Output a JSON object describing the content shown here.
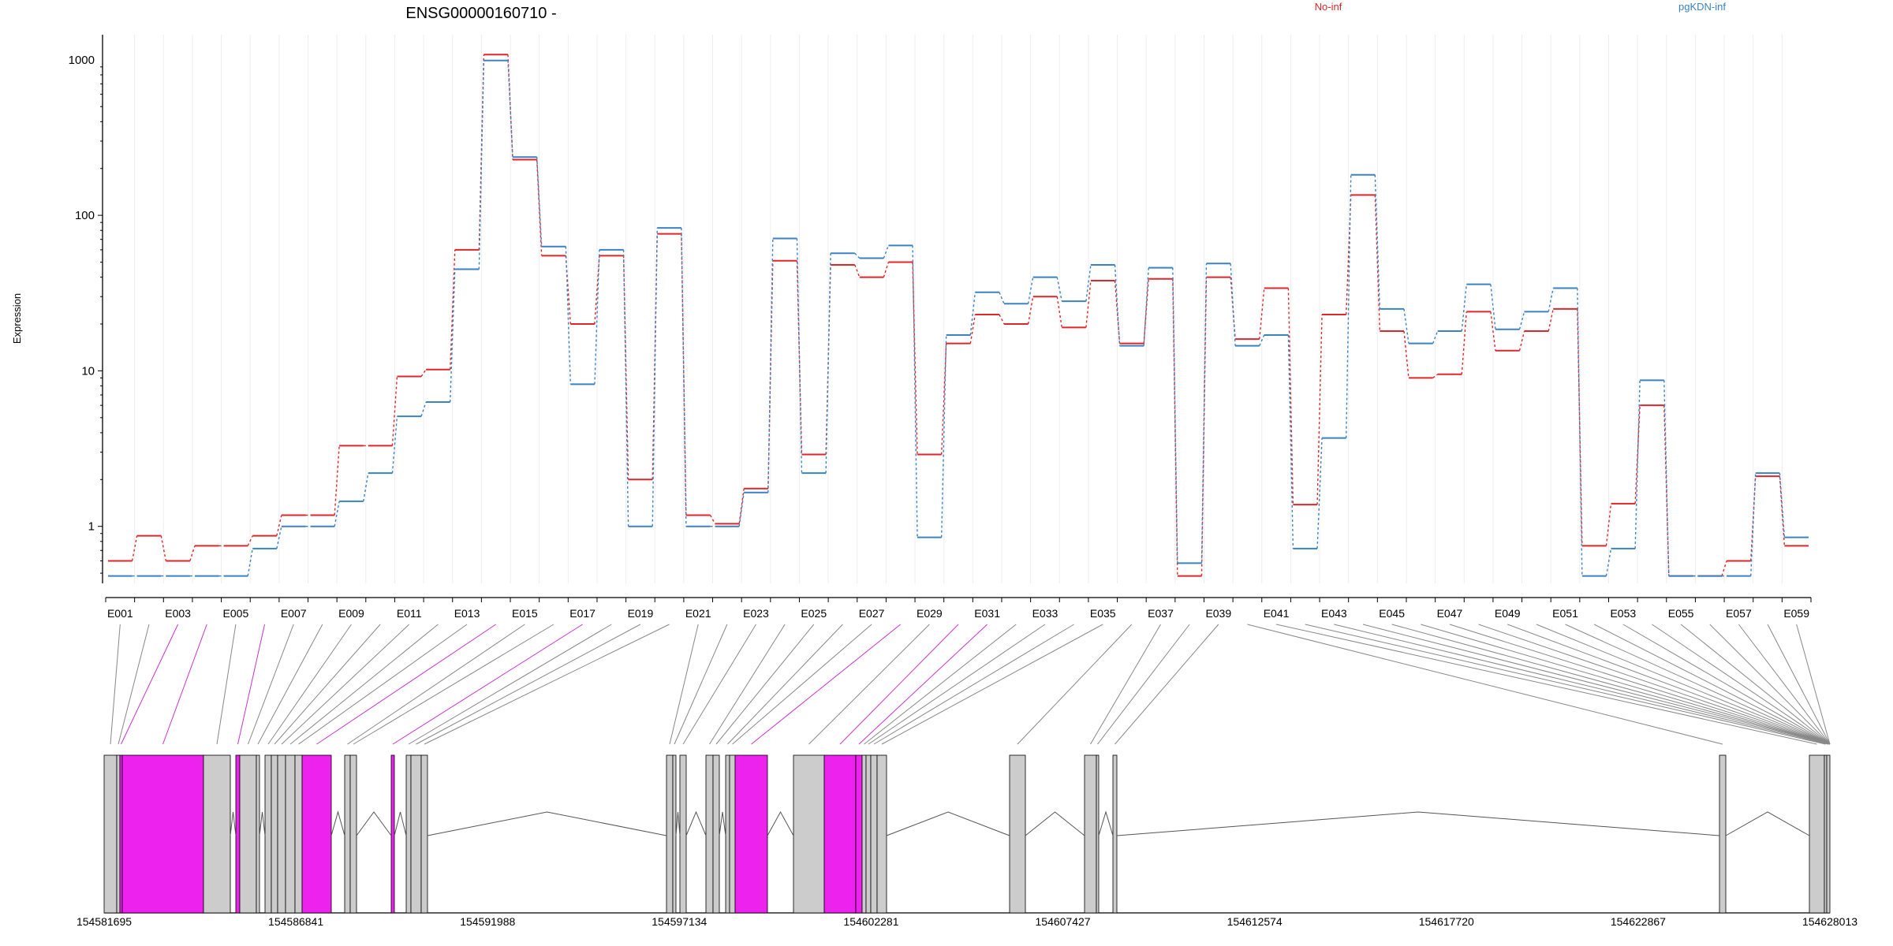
{
  "chart_data": {
    "type": "line",
    "title": "ENSG00000160710 -",
    "ylabel": "Expression",
    "yscale": "log",
    "ylim": [
      0.43,
      1450
    ],
    "yticks": [
      1,
      10,
      100,
      1000
    ],
    "ytick_labels": [
      "1",
      "10",
      "100",
      "1000"
    ],
    "legend_placement": "top-right",
    "colors": {
      "No-inf": "#e0262a",
      "pgKDN-inf": "#3b82c4",
      "exon_default": "#cccccc",
      "exon_highlight": "#ee22ee",
      "connector_highlight": "#cc33cc",
      "connector_default": "#888888"
    },
    "categories": [
      "E001",
      "E002",
      "E003",
      "E004",
      "E005",
      "E006",
      "E007",
      "E008",
      "E009",
      "E010",
      "E011",
      "E012",
      "E013",
      "E014",
      "E015",
      "E016",
      "E017",
      "E018",
      "E019",
      "E020",
      "E021",
      "E022",
      "E023",
      "E024",
      "E025",
      "E026",
      "E027",
      "E028",
      "E029",
      "E030",
      "E031",
      "E032",
      "E033",
      "E034",
      "E035",
      "E036",
      "E037",
      "E038",
      "E039",
      "E040",
      "E041",
      "E042",
      "E043",
      "E044",
      "E045",
      "E046",
      "E047",
      "E048",
      "E049",
      "E050",
      "E051",
      "E052",
      "E053",
      "E054",
      "E055",
      "E056",
      "E057",
      "E058",
      "E059"
    ],
    "x_tick_labels": [
      "E001",
      "E003",
      "E005",
      "E007",
      "E009",
      "E011",
      "E013",
      "E015",
      "E017",
      "E019",
      "E021",
      "E023",
      "E025",
      "E027",
      "E029",
      "E031",
      "E033",
      "E035",
      "E037",
      "E039",
      "E041",
      "E043",
      "E045",
      "E047",
      "E049",
      "E051",
      "E053",
      "E055",
      "E057",
      "E059"
    ],
    "series": [
      {
        "name": "No-inf",
        "values": [
          0.6,
          0.87,
          0.6,
          0.75,
          0.75,
          0.87,
          1.18,
          1.18,
          3.3,
          3.3,
          9.2,
          10.2,
          60,
          1080,
          228,
          55,
          20,
          55,
          2.0,
          76,
          1.18,
          1.04,
          1.75,
          51,
          2.9,
          48,
          40,
          50,
          2.9,
          15,
          23,
          20,
          30,
          19,
          38,
          15,
          39,
          0.48,
          40,
          16,
          34,
          1.38,
          23,
          135,
          18,
          9.0,
          9.5,
          24,
          13.5,
          18,
          25,
          0.75,
          1.4,
          6.0,
          0.48,
          0.48,
          0.6,
          2.1,
          0.75
        ]
      },
      {
        "name": "pgKDN-inf",
        "values": [
          0.48,
          0.48,
          0.48,
          0.48,
          0.48,
          0.72,
          1.0,
          1.0,
          1.45,
          2.2,
          5.1,
          6.3,
          45,
          990,
          237,
          63,
          8.2,
          60,
          1.0,
          83,
          1.0,
          1.0,
          1.65,
          71,
          2.2,
          57,
          53,
          64,
          0.85,
          17,
          32,
          27,
          40,
          28,
          48,
          14.5,
          46,
          0.58,
          49,
          14.5,
          17,
          0.72,
          3.7,
          182,
          25,
          15,
          18,
          36,
          18.5,
          24,
          34,
          0.48,
          0.72,
          8.7,
          0.48,
          0.48,
          0.48,
          2.2,
          0.85
        ]
      }
    ],
    "gene_track": {
      "coordinate_labels": [
        "154581695",
        "154586841",
        "154591988",
        "154597134",
        "154602281",
        "154607427",
        "154612574",
        "154617720",
        "154622867",
        "154628013"
      ],
      "coordinate_range": [
        154581695,
        154628013
      ],
      "exon_highlight": [
        false,
        false,
        true,
        true,
        false,
        true,
        false,
        false,
        false,
        false,
        false,
        false,
        false,
        true,
        false,
        false,
        true,
        false,
        false,
        false,
        false,
        false,
        false,
        false,
        false,
        false,
        false,
        true,
        false,
        true,
        true,
        false,
        false,
        false,
        false,
        false,
        false,
        false,
        false,
        false,
        false,
        false,
        false,
        false,
        false,
        false,
        false,
        false,
        false,
        false,
        false,
        false,
        false,
        false,
        false,
        false,
        false,
        false,
        false
      ]
    }
  }
}
